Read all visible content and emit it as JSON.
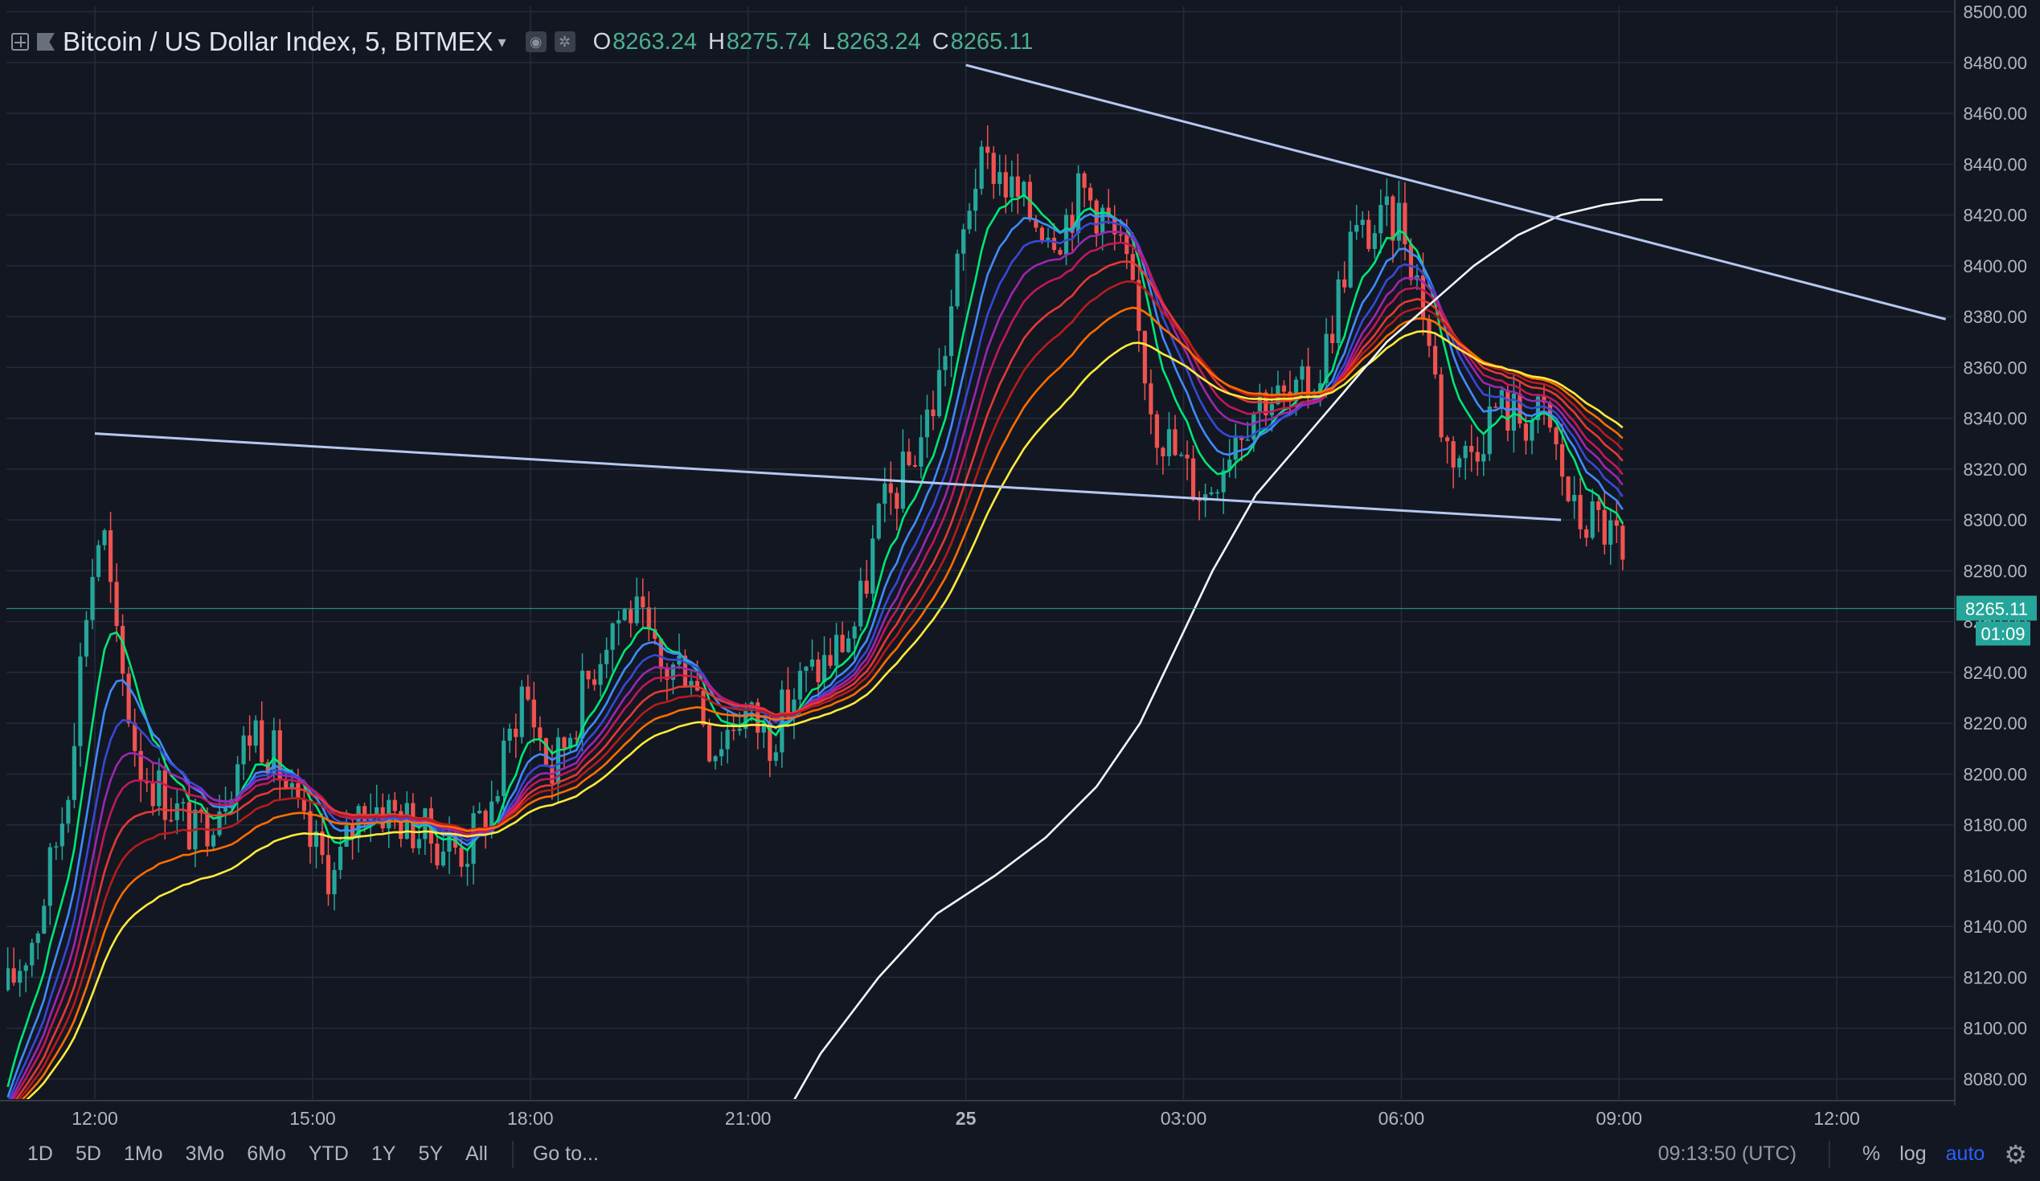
{
  "header": {
    "title": "Bitcoin / US Dollar Index, 5, BITMEX",
    "ohlc": {
      "o_label": "O",
      "o": "8263.24",
      "h_label": "H",
      "h": "8275.74",
      "l_label": "L",
      "l": "8263.24",
      "c_label": "C",
      "c": "8265.11"
    }
  },
  "toolbar": {
    "ranges": [
      "1D",
      "5D",
      "1Mo",
      "3Mo",
      "6Mo",
      "YTD",
      "1Y",
      "5Y",
      "All"
    ],
    "goto_label": "Go to...",
    "clock": "09:13:50 (UTC)",
    "percent_label": "%",
    "log_label": "log",
    "auto_label": "auto"
  },
  "colors": {
    "background": "#131722",
    "up": "#26a69a",
    "down": "#ef5350",
    "grid": "#262b3a",
    "trendline": "#b4c8f0",
    "ma200": "#f5f5f5",
    "price_tag": "#26a69a"
  },
  "chart_data": {
    "type": "candlestick",
    "title": "Bitcoin / US Dollar Index, 5, BITMEX",
    "interval": "5 minutes",
    "y_ticks": [
      "8080.00",
      "8100.00",
      "8120.00",
      "8140.00",
      "8160.00",
      "8180.00",
      "8200.00",
      "8220.00",
      "8240.00",
      "8260.00",
      "8280.00",
      "8300.00",
      "8320.00",
      "8340.00",
      "8360.00",
      "8380.00",
      "8400.00",
      "8420.00",
      "8440.00",
      "8460.00",
      "8480.00",
      "8500.00"
    ],
    "y_tick_values": [
      8080,
      8100,
      8120,
      8140,
      8160,
      8180,
      8200,
      8220,
      8240,
      8260,
      8280,
      8300,
      8320,
      8340,
      8360,
      8380,
      8400,
      8420,
      8440,
      8460,
      8480,
      8500
    ],
    "ylim": [
      8070,
      8500
    ],
    "x_ticks": [
      "12:00",
      "15:00",
      "18:00",
      "21:00",
      "25",
      "03:00",
      "06:00",
      "09:00",
      "12:00"
    ],
    "x_tick_hours": [
      12,
      15,
      18,
      21,
      24,
      27,
      30,
      33,
      36
    ],
    "xlim_hours": [
      10.8,
      37.6
    ],
    "last_price": {
      "label": "8265.11",
      "value": 8265.11,
      "countdown": "01:09"
    },
    "price_path": [
      [
        10.8,
        8115
      ],
      [
        11.2,
        8140
      ],
      [
        11.6,
        8190
      ],
      [
        11.9,
        8270
      ],
      [
        12.1,
        8300
      ],
      [
        12.3,
        8250
      ],
      [
        12.6,
        8205
      ],
      [
        13.0,
        8190
      ],
      [
        13.4,
        8175
      ],
      [
        13.8,
        8195
      ],
      [
        14.2,
        8220
      ],
      [
        14.5,
        8205
      ],
      [
        14.9,
        8175
      ],
      [
        15.3,
        8160
      ],
      [
        15.7,
        8190
      ],
      [
        16.1,
        8185
      ],
      [
        16.6,
        8175
      ],
      [
        17.1,
        8170
      ],
      [
        17.5,
        8190
      ],
      [
        17.9,
        8235
      ],
      [
        18.3,
        8200
      ],
      [
        18.7,
        8230
      ],
      [
        19.1,
        8260
      ],
      [
        19.4,
        8265
      ],
      [
        19.8,
        8240
      ],
      [
        20.2,
        8245
      ],
      [
        20.5,
        8210
      ],
      [
        20.9,
        8225
      ],
      [
        21.3,
        8215
      ],
      [
        21.7,
        8235
      ],
      [
        22.1,
        8245
      ],
      [
        22.5,
        8260
      ],
      [
        22.8,
        8300
      ],
      [
        23.2,
        8320
      ],
      [
        23.6,
        8350
      ],
      [
        23.9,
        8400
      ],
      [
        24.1,
        8435
      ],
      [
        24.4,
        8440
      ],
      [
        24.6,
        8430
      ],
      [
        24.9,
        8420
      ],
      [
        25.3,
        8415
      ],
      [
        25.6,
        8430
      ],
      [
        25.9,
        8420
      ],
      [
        26.2,
        8400
      ],
      [
        26.6,
        8340
      ],
      [
        27.0,
        8320
      ],
      [
        27.3,
        8310
      ],
      [
        27.7,
        8335
      ],
      [
        28.1,
        8350
      ],
      [
        28.5,
        8345
      ],
      [
        28.9,
        8360
      ],
      [
        29.3,
        8410
      ],
      [
        29.7,
        8415
      ],
      [
        30.0,
        8420
      ],
      [
        30.3,
        8385
      ],
      [
        30.6,
        8330
      ],
      [
        30.9,
        8325
      ],
      [
        31.3,
        8345
      ],
      [
        31.7,
        8340
      ],
      [
        32.0,
        8340
      ],
      [
        32.4,
        8300
      ],
      [
        32.7,
        8300
      ],
      [
        33.0,
        8290
      ],
      [
        33.12,
        8265
      ]
    ],
    "ribbon_colors": [
      "#00e676",
      "#3f8cff",
      "#3948d6",
      "#9c27b0",
      "#c2185b",
      "#e53935",
      "#b71c1c",
      "#ff6d00",
      "#ffeb3b"
    ],
    "ma200_path": [
      [
        21.6,
        8070
      ],
      [
        22.0,
        8090
      ],
      [
        22.8,
        8120
      ],
      [
        23.6,
        8145
      ],
      [
        24.4,
        8160
      ],
      [
        25.1,
        8175
      ],
      [
        25.8,
        8195
      ],
      [
        26.4,
        8220
      ],
      [
        26.9,
        8250
      ],
      [
        27.4,
        8280
      ],
      [
        28.0,
        8310
      ],
      [
        28.6,
        8330
      ],
      [
        29.2,
        8350
      ],
      [
        29.8,
        8370
      ],
      [
        30.4,
        8385
      ],
      [
        31.0,
        8400
      ],
      [
        31.6,
        8412
      ],
      [
        32.2,
        8420
      ],
      [
        32.8,
        8424
      ],
      [
        33.3,
        8426
      ],
      [
        33.6,
        8426
      ]
    ],
    "trendlines": [
      {
        "from": [
          12.0,
          8334
        ],
        "to": [
          32.2,
          8300
        ]
      },
      {
        "from": [
          24.0,
          8479
        ],
        "to": [
          37.5,
          8379
        ]
      }
    ]
  }
}
